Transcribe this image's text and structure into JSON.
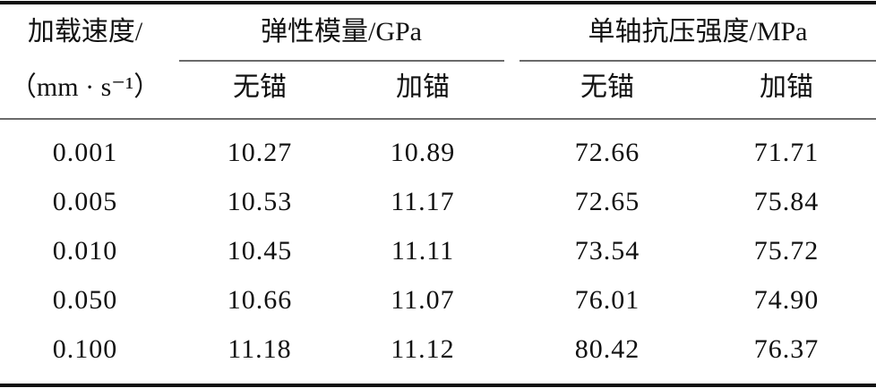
{
  "table": {
    "header": {
      "row1": [
        "加载速度/",
        "弹性模量/GPa",
        "单轴抗压强度/MPa"
      ],
      "row2": [
        "（mm · s⁻¹）",
        "无锚",
        "加锚",
        "无锚",
        "加锚"
      ]
    },
    "rows": [
      [
        "0.001",
        "10.27",
        "10.89",
        "72.66",
        "71.71"
      ],
      [
        "0.005",
        "10.53",
        "11.17",
        "72.65",
        "75.84"
      ],
      [
        "0.010",
        "10.45",
        "11.11",
        "73.54",
        "75.72"
      ],
      [
        "0.050",
        "10.66",
        "11.07",
        "76.01",
        "74.90"
      ],
      [
        "0.100",
        "11.18",
        "11.12",
        "80.42",
        "76.37"
      ]
    ]
  }
}
